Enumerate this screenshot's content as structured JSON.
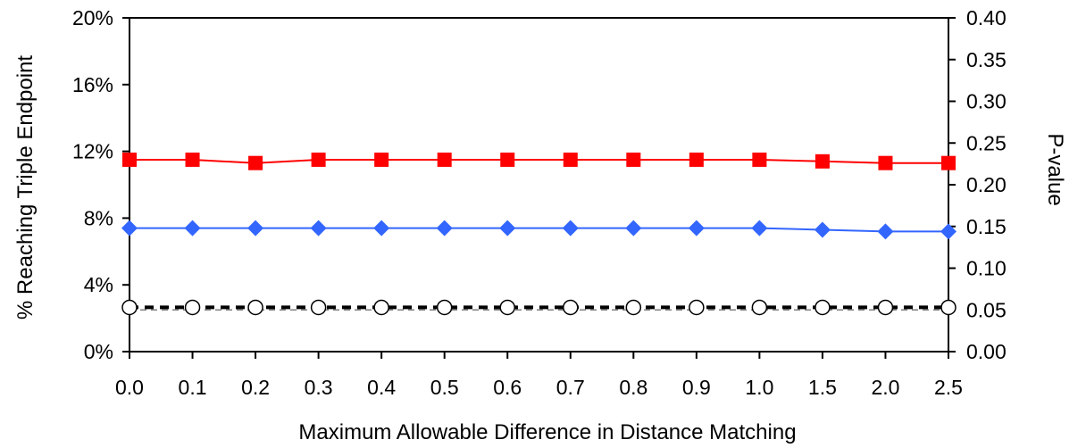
{
  "chart_data": {
    "type": "line",
    "xlabel": "Maximum Allowable Difference in Distance Matching",
    "ylabel_left": "% Reaching Triple Endpoint",
    "ylabel_right": "P-value",
    "categories": [
      "0.0",
      "0.1",
      "0.2",
      "0.3",
      "0.4",
      "0.5",
      "0.6",
      "0.7",
      "0.8",
      "0.9",
      "1.0",
      "1.5",
      "2.0",
      "2.5"
    ],
    "ylim_left": [
      0,
      20
    ],
    "ylim_right": [
      0,
      0.4
    ],
    "yticks_left": [
      "0%",
      "4%",
      "8%",
      "12%",
      "16%",
      "20%"
    ],
    "yticks_right": [
      "0.00",
      "0.05",
      "0.10",
      "0.15",
      "0.20",
      "0.25",
      "0.30",
      "0.35",
      "0.40"
    ],
    "grid": false,
    "series": [
      {
        "marker": "square",
        "color": "#ff0000",
        "axis": "left",
        "values": [
          11.5,
          11.5,
          11.3,
          11.5,
          11.5,
          11.5,
          11.5,
          11.5,
          11.5,
          11.5,
          11.5,
          11.4,
          11.3,
          11.3
        ]
      },
      {
        "marker": "diamond",
        "color": "#3366ff",
        "axis": "left",
        "values": [
          7.4,
          7.4,
          7.4,
          7.4,
          7.4,
          7.4,
          7.4,
          7.4,
          7.4,
          7.4,
          7.4,
          7.3,
          7.2,
          7.2
        ]
      },
      {
        "marker": "open-circle",
        "color": "#000000",
        "axis": "right",
        "values": [
          0.053,
          0.053,
          0.053,
          0.053,
          0.053,
          0.053,
          0.053,
          0.053,
          0.053,
          0.053,
          0.053,
          0.053,
          0.053,
          0.053
        ]
      }
    ],
    "reference_line": {
      "axis": "right",
      "value": 0.05,
      "style": "dashed",
      "color": "#808080"
    }
  }
}
